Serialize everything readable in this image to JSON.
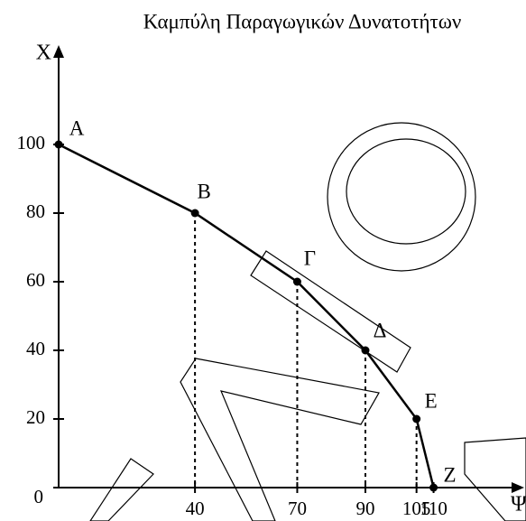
{
  "chart_data": {
    "type": "line",
    "title": "Καμπύλη Παραγωγικών Δυνατοτήτων",
    "x_label": "Ψ",
    "y_label": "X",
    "x": [
      0,
      40,
      70,
      90,
      105,
      110
    ],
    "series": [
      {
        "values": [
          100,
          80,
          60,
          40,
          20,
          0
        ],
        "color": "#000000",
        "point_labels": [
          "A",
          "B",
          "Γ",
          "Δ",
          "E",
          "Z"
        ]
      }
    ],
    "xlim": [
      0,
      135
    ],
    "ylim": [
      0,
      125
    ],
    "xticks": [
      40,
      70,
      90,
      105,
      110
    ],
    "yticks": [
      0,
      20,
      40,
      60,
      80,
      100
    ]
  }
}
